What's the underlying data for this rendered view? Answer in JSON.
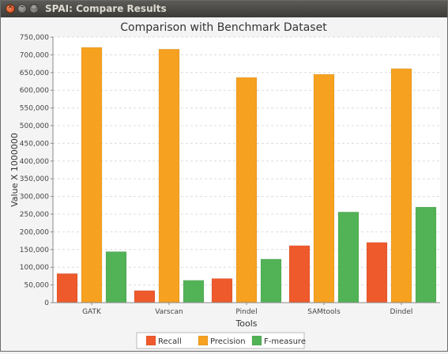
{
  "window": {
    "title": "SPAI: Compare Results"
  },
  "chart_data": {
    "type": "bar",
    "title": "Comparison with Benchmark Dataset",
    "xlabel": "Tools",
    "ylabel": "Value X 1000000",
    "categories": [
      "GATK",
      "Varscan",
      "Pindel",
      "SAMtools",
      "Dindel"
    ],
    "series": [
      {
        "name": "Recall",
        "color": "#ee5a2c",
        "values": [
          82000,
          34000,
          68000,
          161000,
          170000
        ]
      },
      {
        "name": "Precision",
        "color": "#f6a11f",
        "values": [
          721000,
          716000,
          636000,
          645000,
          661000
        ]
      },
      {
        "name": "F-measure",
        "color": "#52b356",
        "values": [
          144000,
          63000,
          123000,
          256000,
          270000
        ]
      }
    ],
    "ylim": [
      0,
      750000
    ],
    "yticks": [
      "0",
      "50,000",
      "100,000",
      "150,000",
      "200,000",
      "250,000",
      "300,000",
      "350,000",
      "400,000",
      "450,000",
      "500,000",
      "550,000",
      "600,000",
      "650,000",
      "700,000",
      "750,000"
    ],
    "grid": true,
    "legend_position": "bottom"
  }
}
